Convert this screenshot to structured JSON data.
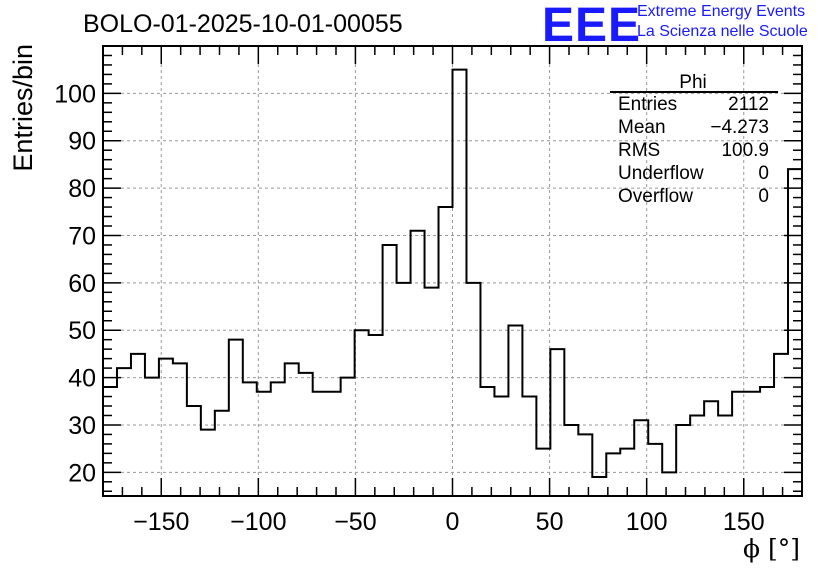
{
  "header": {
    "run_title": "BOLO-01-2025-10-01-00055",
    "logo_mark": "EEE",
    "logo_line1": "Extreme Energy Events",
    "logo_line2": "La Scienza nelle Scuole"
  },
  "colors": {
    "accent": "#1a1aff",
    "line": "#000000",
    "grid": "#999999"
  },
  "stats_box": {
    "title": "Phi",
    "rows": [
      {
        "label": "Entries",
        "value": "2112"
      },
      {
        "label": "Mean",
        "value": "−4.273"
      },
      {
        "label": "RMS",
        "value": "100.9"
      },
      {
        "label": "Underflow",
        "value": "0"
      },
      {
        "label": "Overflow",
        "value": "0"
      }
    ]
  },
  "chart_data": {
    "type": "histogram",
    "title": "",
    "xlabel": "ϕ [°]",
    "ylabel": "Entries/bin",
    "xlim": [
      -180,
      180
    ],
    "ylim": [
      15,
      110
    ],
    "grid": true,
    "bin_edges_start": -180,
    "bin_width": 7.2,
    "values": [
      38,
      42,
      45,
      40,
      44,
      43,
      34,
      29,
      33,
      48,
      39,
      37,
      39,
      43,
      41,
      37,
      37,
      40,
      50,
      49,
      68,
      60,
      71,
      59,
      76,
      105,
      60,
      38,
      36,
      51,
      36,
      25,
      46,
      30,
      28,
      19,
      24,
      25,
      31,
      26,
      20,
      30,
      32,
      35,
      32,
      37,
      37,
      38,
      45,
      84
    ],
    "x_ticks": [
      -150,
      -100,
      -50,
      0,
      50,
      100,
      150
    ],
    "x_tick_labels": [
      "−150",
      "−100",
      "−50",
      "0",
      "50",
      "100",
      "150"
    ],
    "y_ticks": [
      20,
      30,
      40,
      50,
      60,
      70,
      80,
      90,
      100
    ],
    "y_tick_labels": [
      "20",
      "30",
      "40",
      "50",
      "60",
      "70",
      "80",
      "90",
      "100"
    ]
  }
}
